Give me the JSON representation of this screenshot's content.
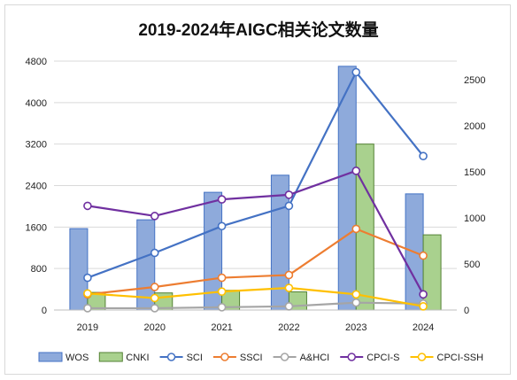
{
  "chart_data": {
    "type": "bar",
    "title": "2019-2024年AIGC相关论文数量",
    "categories": [
      "2019",
      "2020",
      "2021",
      "2022",
      "2023",
      "2024"
    ],
    "y_left": {
      "ylim": [
        0,
        4800
      ],
      "ticks": [
        "0",
        "800",
        "1600",
        "2400",
        "3200",
        "4000",
        "4800"
      ]
    },
    "y_right": {
      "ylim": [
        0,
        2700
      ],
      "ticks": [
        "0",
        "500",
        "1000",
        "1500",
        "2000",
        "2500"
      ]
    },
    "grid": true,
    "legend_position": "bottom",
    "bar_series": [
      {
        "name": "WOS",
        "axis": "left",
        "color": "#8eaadb",
        "border": "#4472c4",
        "values": [
          1570,
          1740,
          2270,
          2600,
          4700,
          2240
        ]
      },
      {
        "name": "CNKI",
        "axis": "left",
        "color": "#a9d18e",
        "border": "#548235",
        "values": [
          340,
          330,
          380,
          350,
          3200,
          1450
        ]
      }
    ],
    "line_series": [
      {
        "name": "SCI",
        "axis": "right",
        "color": "#4472c4",
        "values": [
          350,
          620,
          910,
          1130,
          2580,
          1670
        ]
      },
      {
        "name": "SSCI",
        "axis": "right",
        "color": "#ed7d31",
        "values": [
          170,
          250,
          350,
          380,
          880,
          590
        ]
      },
      {
        "name": "A&HCI",
        "axis": "right",
        "color": "#a5a5a5",
        "values": [
          20,
          20,
          30,
          40,
          80,
          70
        ]
      },
      {
        "name": "CPCI-S",
        "axis": "right",
        "color": "#7030a0",
        "values": [
          1130,
          1020,
          1200,
          1250,
          1510,
          170
        ]
      },
      {
        "name": "CPCI-SSH",
        "axis": "right",
        "color": "#ffc000",
        "values": [
          180,
          130,
          200,
          240,
          170,
          40
        ]
      }
    ]
  }
}
